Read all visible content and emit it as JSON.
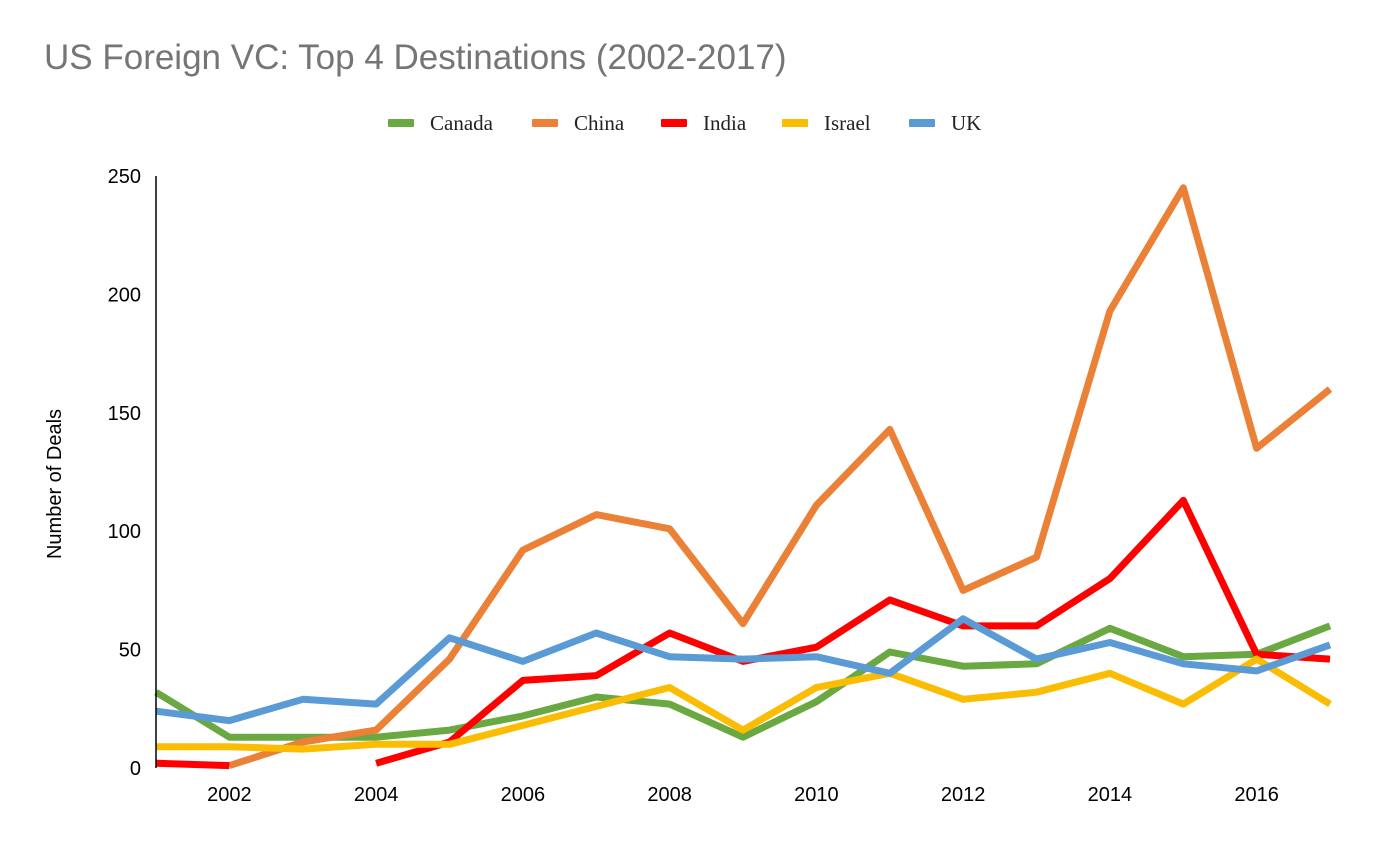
{
  "chart_data": {
    "type": "line",
    "title": "US Foreign VC: Top 4 Destinations (2002-2017)",
    "xlabel": "",
    "ylabel": "Number of Deals",
    "x": [
      2001,
      2002,
      2003,
      2004,
      2005,
      2006,
      2007,
      2008,
      2009,
      2010,
      2011,
      2012,
      2013,
      2014,
      2015,
      2016,
      2017
    ],
    "xlim": [
      2001,
      2017
    ],
    "ylim": [
      0,
      250
    ],
    "x_ticks": [
      2002,
      2004,
      2006,
      2008,
      2010,
      2012,
      2014,
      2016
    ],
    "y_ticks": [
      0,
      50,
      100,
      150,
      200,
      250
    ],
    "grid": false,
    "legend_position": "top-center",
    "series": [
      {
        "name": "Canada",
        "color": "#6aa842",
        "values": [
          32,
          13,
          13,
          13,
          16,
          22,
          30,
          27,
          13,
          28,
          49,
          43,
          44,
          59,
          47,
          48,
          60
        ]
      },
      {
        "name": "China",
        "color": "#ea8136",
        "values": [
          null,
          1,
          11,
          16,
          46,
          92,
          107,
          101,
          61,
          111,
          143,
          75,
          89,
          193,
          245,
          135,
          160
        ]
      },
      {
        "name": "India",
        "color": "#ff0000",
        "values": [
          2,
          1,
          null,
          2,
          11,
          37,
          39,
          57,
          45,
          51,
          71,
          60,
          60,
          80,
          113,
          48,
          46
        ]
      },
      {
        "name": "Israel",
        "color": "#fbbc04",
        "values": [
          9,
          9,
          8,
          10,
          10,
          18,
          26,
          34,
          16,
          34,
          40,
          29,
          32,
          40,
          27,
          46,
          27
        ]
      },
      {
        "name": "UK",
        "color": "#5b9bd5",
        "values": [
          24,
          20,
          29,
          27,
          55,
          45,
          57,
          47,
          46,
          47,
          40,
          63,
          46,
          53,
          44,
          41,
          52
        ]
      }
    ]
  }
}
